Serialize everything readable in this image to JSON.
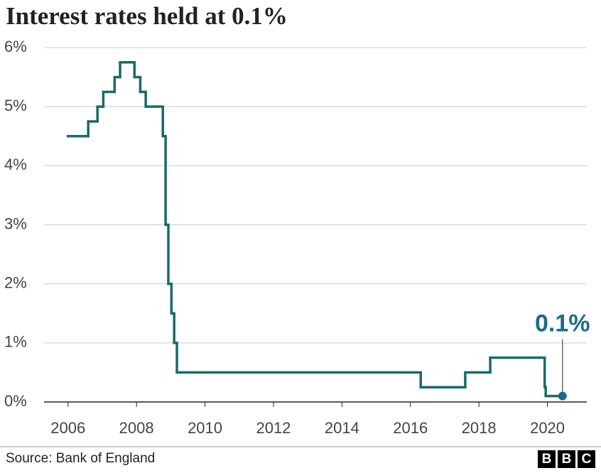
{
  "chart_data": {
    "type": "step-line",
    "title": "Interest rates held at 0.1%",
    "x": [
      2006.0,
      2006.59,
      2006.86,
      2007.03,
      2007.36,
      2007.52,
      2007.94,
      2008.11,
      2008.27,
      2008.77,
      2008.85,
      2008.93,
      2009.02,
      2009.1,
      2009.18,
      2016.3,
      2017.6,
      2018.33,
      2019.92,
      2019.95,
      2020.44
    ],
    "values": [
      4.5,
      4.75,
      5.0,
      5.25,
      5.5,
      5.75,
      5.5,
      5.25,
      5.0,
      4.5,
      3.0,
      2.0,
      1.5,
      1.0,
      0.5,
      0.25,
      0.5,
      0.75,
      0.25,
      0.1,
      0.1
    ],
    "color": "#1a6b66",
    "annotation": "0.1%",
    "annotation_color": "#1a6b8c",
    "xlim": [
      2005.3,
      2021.15
    ],
    "xticks": [
      2006,
      2008,
      2010,
      2012,
      2014,
      2016,
      2018,
      2020
    ],
    "ylim": [
      0,
      6
    ],
    "yticks": [
      {
        "value": 0,
        "label": "0%"
      },
      {
        "value": 1,
        "label": "1%"
      },
      {
        "value": 2,
        "label": "2%"
      },
      {
        "value": 3,
        "label": "3%"
      },
      {
        "value": 4,
        "label": "4%"
      },
      {
        "value": 5,
        "label": "5%"
      },
      {
        "value": 6,
        "label": "6%"
      }
    ],
    "grid": true,
    "source": "Source: Bank of England",
    "logo": [
      "B",
      "B",
      "C"
    ]
  }
}
